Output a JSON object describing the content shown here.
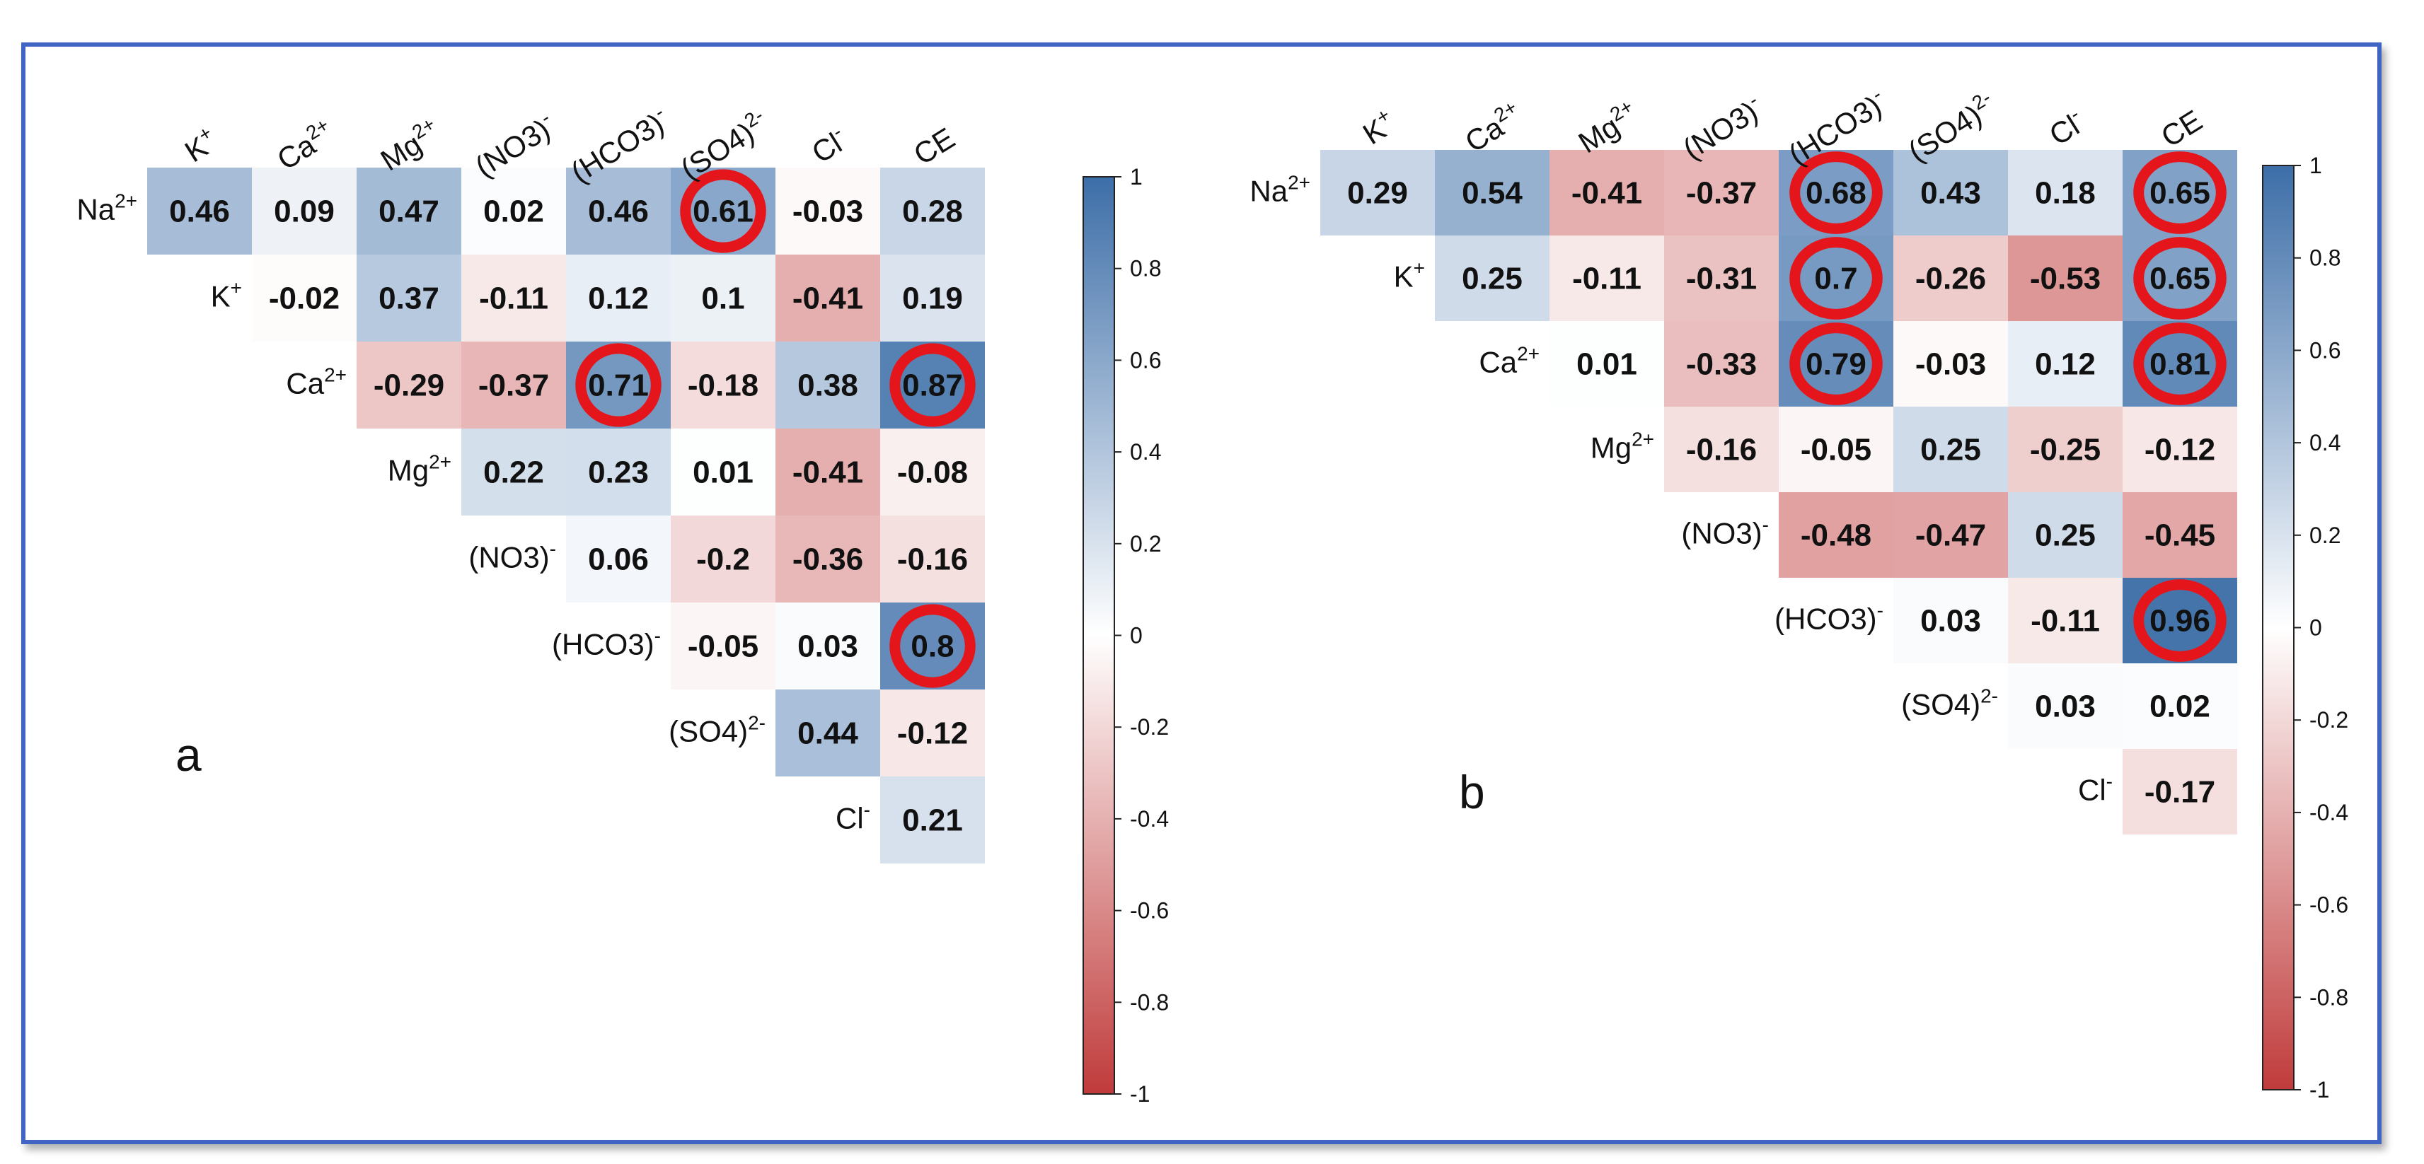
{
  "chart_data": [
    {
      "type": "heatmap",
      "panel_label": "a",
      "columns": [
        {
          "base": "K",
          "sup": "+"
        },
        {
          "base": "Ca",
          "sup": "2+"
        },
        {
          "base": "Mg",
          "sup": "2+"
        },
        {
          "base": "(NO3)",
          "sup": "-"
        },
        {
          "base": "(HCO3)",
          "sup": "-"
        },
        {
          "base": "(SO4)",
          "sup": "2-"
        },
        {
          "base": "Cl",
          "sup": "-"
        },
        {
          "base": "CE",
          "sup": ""
        }
      ],
      "rows": [
        {
          "base": "Na",
          "sup": "2+"
        },
        {
          "base": "K",
          "sup": "+"
        },
        {
          "base": "Ca",
          "sup": "2+"
        },
        {
          "base": "Mg",
          "sup": "2+"
        },
        {
          "base": "(NO3)",
          "sup": "-"
        },
        {
          "base": "(HCO3)",
          "sup": "-"
        },
        {
          "base": "(SO4)",
          "sup": "2-"
        },
        {
          "base": "Cl",
          "sup": "-"
        }
      ],
      "values": [
        [
          0.46,
          0.09,
          0.47,
          0.02,
          0.46,
          0.61,
          -0.03,
          0.28
        ],
        [
          -0.02,
          0.37,
          -0.11,
          0.12,
          0.1,
          -0.41,
          0.19
        ],
        [
          -0.29,
          -0.37,
          0.71,
          -0.18,
          0.38,
          0.87
        ],
        [
          0.22,
          0.23,
          0.01,
          -0.41,
          -0.08
        ],
        [
          0.06,
          -0.2,
          -0.36,
          -0.16
        ],
        [
          -0.05,
          0.03,
          0.8
        ],
        [
          0.44,
          -0.12
        ],
        [
          0.21
        ]
      ],
      "highlighted": [
        [
          0,
          5
        ],
        [
          2,
          4
        ],
        [
          2,
          7
        ],
        [
          5,
          7
        ]
      ],
      "colorbar": {
        "min": -1,
        "max": 1,
        "ticks": [
          "1",
          "0.8",
          "0.6",
          "0.4",
          "0.2",
          "0",
          "-0.2",
          "-0.4",
          "-0.6",
          "-0.8",
          "-1"
        ]
      }
    },
    {
      "type": "heatmap",
      "panel_label": "b",
      "columns": [
        {
          "base": "K",
          "sup": "+"
        },
        {
          "base": "Ca",
          "sup": "2+"
        },
        {
          "base": "Mg",
          "sup": "2+"
        },
        {
          "base": "(NO3)",
          "sup": "-"
        },
        {
          "base": "(HCO3)",
          "sup": "-"
        },
        {
          "base": "(SO4)",
          "sup": "2-"
        },
        {
          "base": "Cl",
          "sup": "-"
        },
        {
          "base": "CE",
          "sup": ""
        }
      ],
      "rows": [
        {
          "base": "Na",
          "sup": "2+"
        },
        {
          "base": "K",
          "sup": "+"
        },
        {
          "base": "Ca",
          "sup": "2+"
        },
        {
          "base": "Mg",
          "sup": "2+"
        },
        {
          "base": "(NO3)",
          "sup": "-"
        },
        {
          "base": "(HCO3)",
          "sup": "-"
        },
        {
          "base": "(SO4)",
          "sup": "2-"
        },
        {
          "base": "Cl",
          "sup": "-"
        }
      ],
      "values": [
        [
          0.29,
          0.54,
          -0.41,
          -0.37,
          0.68,
          0.43,
          0.18,
          0.65
        ],
        [
          0.25,
          -0.11,
          -0.31,
          0.7,
          -0.26,
          -0.53,
          0.65
        ],
        [
          0.01,
          -0.33,
          0.79,
          -0.03,
          0.12,
          0.81
        ],
        [
          -0.16,
          -0.05,
          0.25,
          -0.25,
          -0.12
        ],
        [
          -0.48,
          -0.47,
          0.25,
          -0.45
        ],
        [
          0.03,
          -0.11,
          0.96
        ],
        [
          0.03,
          0.02
        ],
        [
          -0.17
        ]
      ],
      "highlighted": [
        [
          0,
          4
        ],
        [
          0,
          7
        ],
        [
          1,
          4
        ],
        [
          1,
          7
        ],
        [
          2,
          4
        ],
        [
          2,
          7
        ],
        [
          5,
          7
        ]
      ],
      "colorbar": {
        "min": -1,
        "max": 1,
        "ticks": [
          "1",
          "0.8",
          "0.6",
          "0.4",
          "0.2",
          "0",
          "-0.2",
          "-0.4",
          "-0.6",
          "-0.8",
          "-1"
        ]
      }
    }
  ],
  "colors": {
    "positive": "#3d6ea8",
    "neutral": "#ffffff",
    "negative": "#c03b3b",
    "highlight_ring": "#e4161c",
    "frame": "#3f64c4"
  }
}
